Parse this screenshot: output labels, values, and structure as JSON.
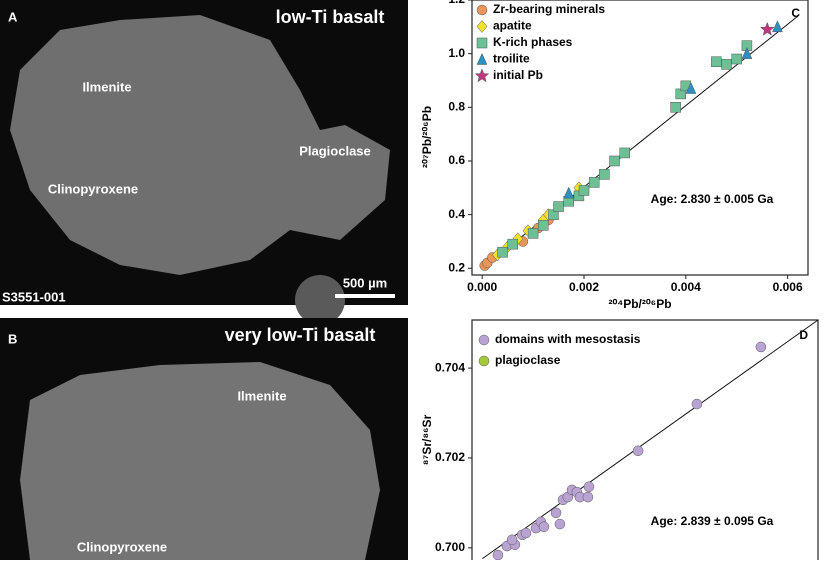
{
  "panels": [
    {
      "label": "A",
      "title": "low-Ti basalt",
      "annotations": [
        "Ilmenite",
        "Plagioclase",
        "Clinopyroxene"
      ],
      "scale_bar": "500 µm",
      "sample": "S3551-001"
    },
    {
      "label": "B",
      "title": "very low-Ti basalt",
      "annotations": [
        "Ilmenite",
        "Clinopyroxene"
      ]
    }
  ],
  "chart_data": [
    {
      "type": "scatter",
      "panel": "C",
      "y_label": "²⁰⁷Pb/²⁰⁶Pb",
      "x_label": "²⁰⁴Pb/²⁰⁶Pb",
      "annotation": "Age: 2.830 ± 0.005 Ga",
      "xlim": [
        -0.0002,
        0.0064
      ],
      "ylim": [
        0.175,
        1.2
      ],
      "xticks": [
        {
          "value": 0,
          "label": "0.000"
        },
        {
          "value": 0.002,
          "label": "0.002"
        },
        {
          "value": 0.004,
          "label": "0.004"
        },
        {
          "value": 0.006,
          "label": "0.006"
        }
      ],
      "yticks": [
        0.2,
        0.4,
        0.6,
        0.8,
        {
          "value": 1,
          "label": "1.0"
        },
        1.2
      ],
      "fit": {
        "x": [
          0,
          0.0062
        ],
        "y": [
          0.2,
          1.14
        ]
      },
      "series": [
        {
          "name": "Zr-bearing minerals",
          "color": "#e8955a",
          "marker": "circle",
          "x": [
            5e-05,
            0.0001,
            0.0002,
            0.0008,
            0.0011,
            0.0013
          ],
          "y": [
            0.21,
            0.22,
            0.24,
            0.3,
            0.35,
            0.38
          ]
        },
        {
          "name": "apatite",
          "color": "#f2e12a",
          "marker": "diamond",
          "x": [
            0.0003,
            0.0005,
            0.0007,
            0.0009,
            0.0012,
            0.0013,
            0.0019
          ],
          "y": [
            0.25,
            0.28,
            0.31,
            0.34,
            0.38,
            0.4,
            0.5
          ]
        },
        {
          "name": "K-rich phases",
          "color": "#6dbf95",
          "marker": "square",
          "x": [
            0.0004,
            0.0006,
            0.001,
            0.0012,
            0.0014,
            0.0015,
            0.0017,
            0.0019,
            0.002,
            0.0022,
            0.0024,
            0.0026,
            0.0028,
            0.0038,
            0.0039,
            0.004,
            0.0046,
            0.0048,
            0.005,
            0.0052
          ],
          "y": [
            0.26,
            0.29,
            0.33,
            0.36,
            0.4,
            0.43,
            0.45,
            0.47,
            0.49,
            0.52,
            0.55,
            0.6,
            0.63,
            0.8,
            0.85,
            0.88,
            0.97,
            0.96,
            0.98,
            1.03
          ]
        },
        {
          "name": "troilite",
          "color": "#2e8fc0",
          "marker": "triangle",
          "x": [
            0.0017,
            0.0041,
            0.0052,
            0.0058
          ],
          "y": [
            0.48,
            0.87,
            1.0,
            1.1
          ]
        },
        {
          "name": "initial Pb",
          "color": "#c2357f",
          "marker": "star",
          "x": [
            0.0056
          ],
          "y": [
            1.09
          ]
        }
      ]
    },
    {
      "type": "scatter",
      "panel": "D",
      "y_label": "⁸⁷Sr/⁸⁶Sr",
      "annotation": "Age: 2.839 ± 0.095 Ga",
      "xlim": [
        0,
        1
      ],
      "ylim": [
        0.69973,
        0.70507
      ],
      "yticks": [
        {
          "value": 0.7,
          "label": "0.700"
        },
        0.702,
        0.704
      ],
      "fit": {
        "x": [
          0.03,
          1
        ],
        "y": [
          0.69976,
          0.70507
        ]
      },
      "series": [
        {
          "name": "domains with mesostasis",
          "color": "#b9a3d3",
          "marker": "circle",
          "x": [
            0.075,
            0.101,
            0.124,
            0.116,
            0.145,
            0.156,
            0.185,
            0.199,
            0.208,
            0.243,
            0.254,
            0.263,
            0.277,
            0.289,
            0.303,
            0.312,
            0.335,
            0.338,
            0.48,
            0.65,
            0.835
          ],
          "y": [
            0.69984,
            0.70004,
            0.70007,
            0.70018,
            0.70029,
            0.70033,
            0.70044,
            0.70058,
            0.70047,
            0.70078,
            0.70053,
            0.70107,
            0.70113,
            0.70129,
            0.70124,
            0.70113,
            0.70113,
            0.70136,
            0.70216,
            0.7032,
            0.70447
          ]
        },
        {
          "name": "plagioclase",
          "color": "#a4c93a",
          "marker": "circle",
          "x": [],
          "y": []
        }
      ]
    }
  ]
}
